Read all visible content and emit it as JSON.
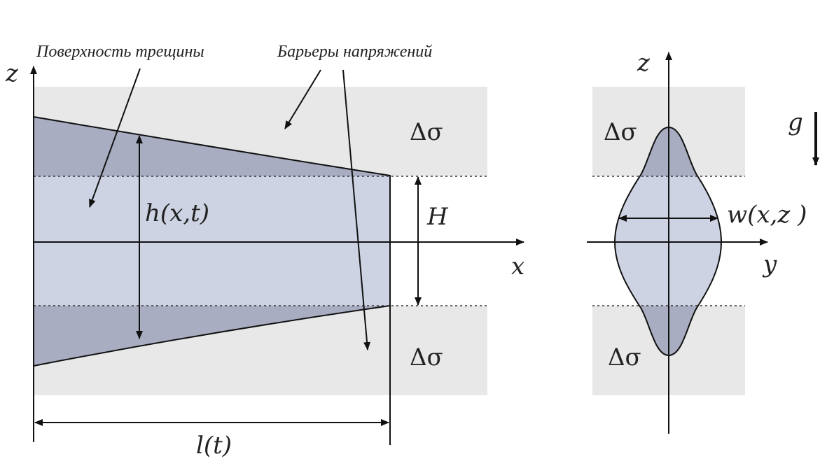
{
  "labels": {
    "crack_surface": "Поверхность трещины",
    "stress_barriers": "Барьеры напряжений",
    "z_axis_left": "z",
    "x_axis": "x",
    "height": "h(x,t)",
    "barrier_height": "H",
    "length": "l(t)",
    "delta_sigma": "Δσ",
    "z_axis_right": "z",
    "y_axis": "y",
    "width": "w(x,z )",
    "gravity": "g"
  },
  "colors": {
    "barrier_fill": "#e8e8e8",
    "crack_fill": "#cdd3e3",
    "crack_fill_dark": "#a9adc2",
    "stroke": "#111111"
  }
}
